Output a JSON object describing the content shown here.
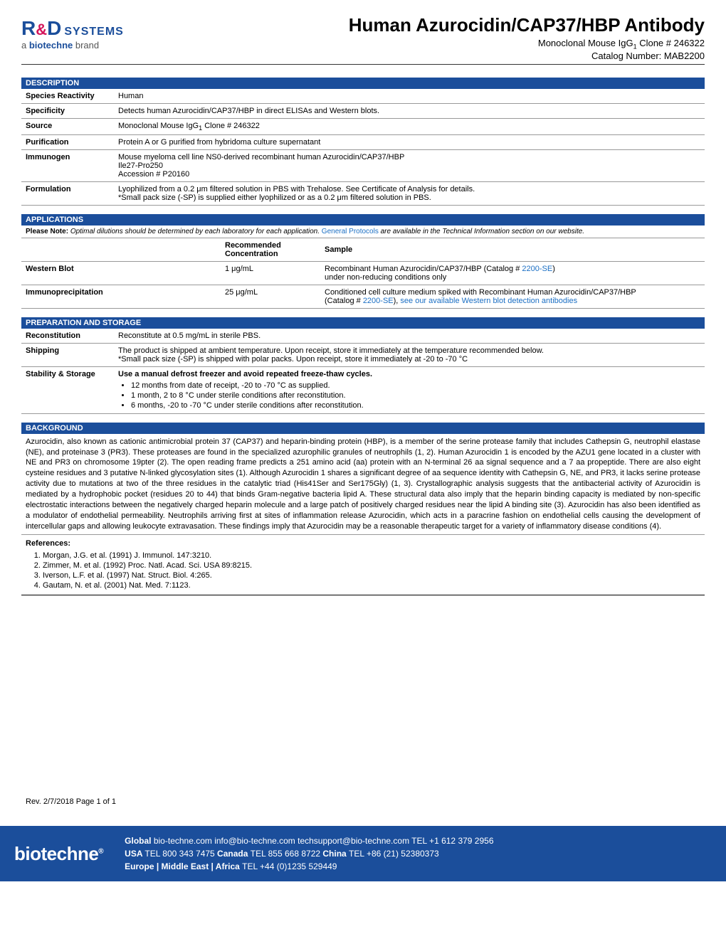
{
  "header": {
    "logo": {
      "r": "R",
      "amp": "&",
      "d": "D",
      "systems": "SYSTEMS",
      "tagline_a": "a ",
      "tagline_b": "biotechne",
      "tagline_c": " brand"
    },
    "title": "Human Azurocidin/CAP37/HBP Antibody",
    "subtitle_pre": "Monoclonal Mouse IgG",
    "subtitle_sub": "1",
    "subtitle_post": " Clone # 246322",
    "catalog_label": "Catalog Number:  ",
    "catalog_value": "MAB2200"
  },
  "sections": {
    "description": "DESCRIPTION",
    "applications": "APPLICATIONS",
    "preparation": "PREPARATION AND STORAGE",
    "background": "BACKGROUND"
  },
  "description_rows": [
    {
      "label": "Species Reactivity",
      "value": "Human"
    },
    {
      "label": "Specificity",
      "value": "Detects human Azurocidin/CAP37/HBP in direct ELISAs and Western blots."
    },
    {
      "label": "Source",
      "value_pre": "Monoclonal Mouse IgG",
      "value_sub": "1",
      "value_post": " Clone # 246322"
    },
    {
      "label": "Purification",
      "value": "Protein A or G purified from hybridoma culture supernatant"
    },
    {
      "label": "Immunogen",
      "value": "Mouse myeloma cell line NS0-derived recombinant human Azurocidin/CAP37/HBP\nIle27-Pro250\nAccession # P20160"
    },
    {
      "label": "Formulation",
      "value": "Lyophilized from a 0.2 μm filtered solution in PBS with Trehalose. See Certificate of Analysis for details.\n*Small pack size (-SP) is supplied either lyophilized or as a 0.2 μm filtered solution in PBS."
    }
  ],
  "app_note_pre": "Please Note: ",
  "app_note_italic": "Optimal dilutions should be determined by each laboratory for each application. ",
  "app_note_link": "General Protocols",
  "app_note_post": " are available in the Technical Information section on our website.",
  "app_headers": {
    "col1": "",
    "col2": "Recommended Concentration",
    "col3": "Sample"
  },
  "app_rows": [
    {
      "name": "Western Blot",
      "conc": "1 μg/mL",
      "sample_pre": "Recombinant Human Azurocidin/CAP37/HBP (Catalog # ",
      "sample_link": "2200-SE",
      "sample_post": ")\nunder non-reducing conditions only"
    },
    {
      "name": "Immunoprecipitation",
      "conc": "25 μg/mL",
      "sample_pre": "Conditioned cell culture medium spiked with Recombinant Human Azurocidin/CAP37/HBP\n(Catalog # ",
      "sample_link": "2200-SE",
      "sample_mid": "), ",
      "sample_link2": "see our available Western blot detection antibodies"
    }
  ],
  "prep_rows": {
    "reconstitution": {
      "label": "Reconstitution",
      "value": "Reconstitute at 0.5 mg/mL in sterile PBS."
    },
    "shipping": {
      "label": "Shipping",
      "value": "The product is shipped at ambient temperature. Upon receipt, store it immediately at the temperature recommended below.\n*Small pack size (-SP) is shipped with polar packs. Upon receipt, store it immediately at -20 to -70 °C"
    },
    "stability": {
      "label": "Stability & Storage",
      "intro": "Use a manual defrost freezer and avoid repeated freeze-thaw cycles.",
      "bullets": [
        "12 months from date of receipt, -20 to -70 °C as supplied.",
        "1 month, 2 to 8 °C under sterile conditions after reconstitution.",
        "6 months, -20 to -70 °C under sterile conditions after reconstitution."
      ]
    }
  },
  "background_text": "Azurocidin, also known as cationic antimicrobial protein 37 (CAP37) and heparin-binding protein (HBP), is a member of the serine protease family that includes Cathepsin G, neutrophil elastase (NE), and proteinase 3 (PR3). These proteases are found in the specialized azurophilic granules of neutrophils (1, 2). Human Azurocidin 1 is encoded by the AZU1 gene located in a cluster with NE and PR3 on chromosome 19pter (2). The open reading frame predicts a 251 amino acid (aa) protein with an N-terminal 26 aa signal sequence and a 7 aa propeptide. There are also eight cysteine residues and 3 putative N-linked glycosylation sites (1). Although Azurocidin 1 shares a significant degree of aa sequence identity with Cathepsin G, NE, and PR3, it lacks serine protease activity due to mutations at two of the three residues in the catalytic triad (His41Ser and Ser175Gly) (1, 3). Crystallographic analysis suggests that the antibacterial activity of Azurocidin is mediated by a hydrophobic pocket (residues 20 to 44) that binds Gram-negative bacteria lipid A. These structural data also imply that the heparin binding capacity is mediated by non-specific electrostatic interactions between the negatively charged heparin molecule and a large patch of positively charged residues near the lipid A binding site (3). Azurocidin has also been identified as a modulator of endothelial permeability. Neutrophils arriving first at sites of inflammation release Azurocidin, which acts in a paracrine fashion on endothelial cells causing the development of intercellular gaps and allowing leukocyte extravasation. These findings imply that Azurocidin may be a reasonable therapeutic target for a variety of inflammatory disease conditions (4).",
  "refs_title": "References:",
  "references": [
    "Morgan, J.G. et al. (1991) J. Immunol. 147:3210.",
    "Zimmer, M. et al. (1992) Proc. Natl. Acad. Sci. USA 89:8215.",
    "Iverson, L.F. et al. (1997) Nat. Struct. Biol. 4:265.",
    "Gautam, N. et al. (2001) Nat. Med. 7:1123."
  ],
  "rev": "Rev. 2/7/2018 Page 1 of 1",
  "footer": {
    "logo": "biotechne",
    "logo_sup": "®",
    "line1_a": "Global ",
    "line1_b": "bio-techne.com  info@bio-techne.com  techsupport@bio-techne.com  TEL +1 612 379 2956",
    "line2_a": "USA ",
    "line2_b": "TEL 800 343 7475   ",
    "line2_c": "Canada ",
    "line2_d": "TEL 855 668 8722   ",
    "line2_e": "China ",
    "line2_f": "TEL +86 (21) 52380373",
    "line3_a": "Europe | Middle East | Africa ",
    "line3_b": "TEL +44 (0)1235 529449"
  }
}
